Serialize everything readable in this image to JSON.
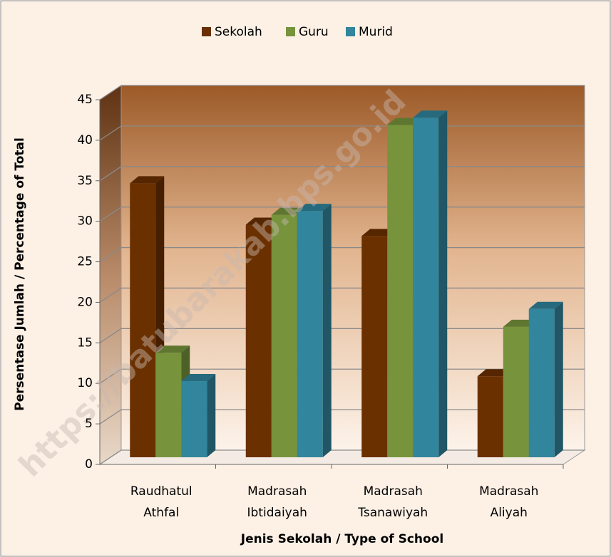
{
  "chart_data": {
    "type": "bar3d",
    "categories": [
      [
        "Raudhatul",
        "Athfal"
      ],
      [
        "Madrasah",
        "Ibtidaiyah"
      ],
      [
        "Madrasah",
        "Tsanawiyah"
      ],
      [
        "Madrasah",
        "Aliyah"
      ]
    ],
    "series": [
      {
        "name": "Sekolah",
        "color": "#6b3000",
        "values": [
          33.8,
          28.7,
          27.3,
          10.0
        ]
      },
      {
        "name": "Guru",
        "color": "#77933c",
        "values": [
          12.9,
          29.9,
          41.0,
          16.1
        ]
      },
      {
        "name": "Murid",
        "color": "#31859c",
        "values": [
          9.4,
          30.4,
          41.9,
          18.3
        ]
      }
    ],
    "ylim": [
      0,
      45
    ],
    "yticks": [
      0,
      5,
      10,
      15,
      20,
      25,
      30,
      35,
      40,
      45
    ],
    "grid": true,
    "legend": "top",
    "xlabel": "Jenis Sekolah / Type of School",
    "ylabel": "Persentase Jumlah / Percentage of Total",
    "watermark": "https://batubarakab.bps.go.id"
  }
}
